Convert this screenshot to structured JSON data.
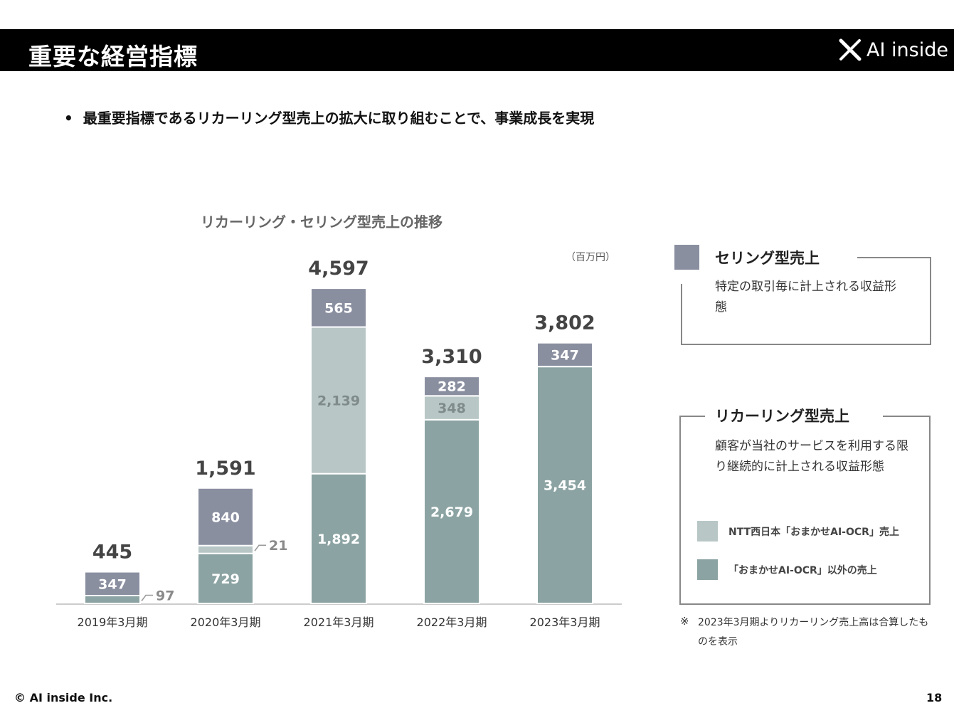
{
  "header": {
    "title": "重要な経営指標",
    "logo_text": "AI inside",
    "logo_icon": "x-mark-icon"
  },
  "bullet": {
    "text": "最重要指標であるリカーリング型売上の拡大に取り組むことで、事業成長を実現"
  },
  "chart_data": {
    "type": "bar",
    "stacked": true,
    "title": "リカーリング・セリング型売上の推移",
    "unit": "（百万円）",
    "categories": [
      "2019年3月期",
      "2020年3月期",
      "2021年3月期",
      "2022年3月期",
      "2023年3月期"
    ],
    "series": [
      {
        "name": "「おまかせAI-OCR」以外の売上",
        "color": "#8ca3a3",
        "values": [
          97,
          729,
          1892,
          2679,
          3454
        ],
        "labels": [
          "97",
          "729",
          "1,892",
          "2,679",
          "3,454"
        ]
      },
      {
        "name": "NTT西日本「おまかせAI-OCR」売上",
        "color": "#b8c6c6",
        "values": [
          0,
          21,
          2139,
          348,
          0
        ],
        "labels": [
          "",
          "21",
          "2,139",
          "348",
          ""
        ]
      },
      {
        "name": "セリング型売上",
        "color": "#8a8fa0",
        "values": [
          347,
          840,
          565,
          282,
          347
        ],
        "labels": [
          "347",
          "840",
          "565",
          "282",
          "347"
        ]
      }
    ],
    "totals": [
      445,
      1591,
      4597,
      3310,
      3802
    ],
    "total_labels": [
      "445",
      "1,591",
      "4,597",
      "3,310",
      "3,802"
    ],
    "ylim": [
      0,
      4600
    ],
    "grid": false,
    "legend": "right"
  },
  "selling_card": {
    "title": "セリング型売上",
    "description": "特定の取引毎に計上される収益形態",
    "color": "#8a8fa0"
  },
  "recurring_card": {
    "title": "リカーリング型売上",
    "description": "顧客が当社のサービスを利用する限り継続的に計上される収益形態",
    "legend": [
      {
        "label": "NTT西日本「おまかせAI-OCR」売上",
        "color": "#b8c6c6"
      },
      {
        "label": "「おまかせAI-OCR」以外の売上",
        "color": "#8ca3a3"
      }
    ]
  },
  "note": {
    "mark": "※",
    "text": "2023年3月期よりリカーリング売上高は合算したものを表示"
  },
  "footer": {
    "copyright": "© AI inside Inc.",
    "page": "18"
  }
}
